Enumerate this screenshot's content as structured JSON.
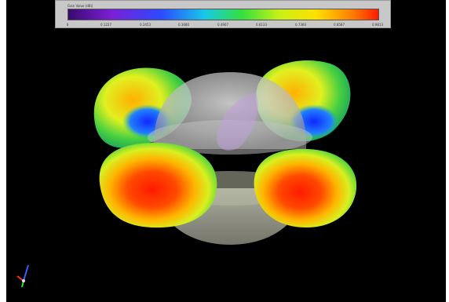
{
  "legend": {
    "title": "Gain Value (dBi)",
    "colormap": [
      "#3b0a6e",
      "#7a1fd6",
      "#2a4bff",
      "#18c8e8",
      "#34e03c",
      "#c8f018",
      "#ffe000",
      "#ff7a00",
      "#ff1a00"
    ],
    "ticks": [
      "0",
      "0.1227",
      "0.2453",
      "0.3680",
      "0.4907",
      "0.6133",
      "0.7360",
      "0.8587",
      "0.9813"
    ]
  },
  "scene": {
    "background": "#000000",
    "lobe_colors": {
      "high": "#ff2000",
      "mid": "#e8f020",
      "low": "#28c850",
      "null": "#1030ff"
    },
    "disc_color": "#cfcfcf"
  },
  "icons": {
    "axis_triad": "xyz-axis-triad-icon"
  }
}
